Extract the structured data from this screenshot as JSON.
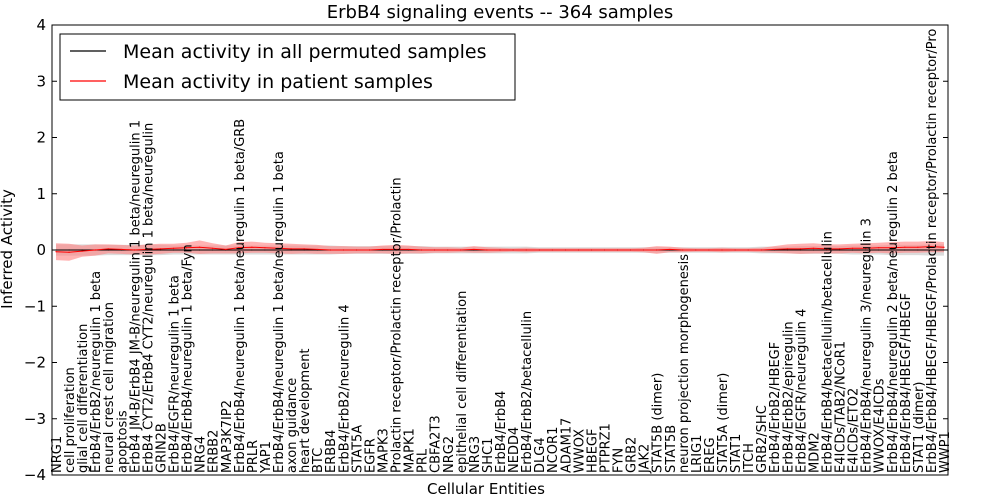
{
  "chart_data": {
    "type": "line",
    "title": "ErbB4 signaling events -- 364 samples",
    "xlabel": "Cellular Entities",
    "ylabel": "Inferred Activity",
    "ylim": [
      -4,
      4
    ],
    "yticks": [
      -4,
      -3,
      -2,
      -1,
      0,
      1,
      2,
      3,
      4
    ],
    "ytick_labels": [
      "−4",
      "−3",
      "−2",
      "−1",
      "0",
      "1",
      "2",
      "3",
      "4"
    ],
    "legend_position": "top-left",
    "categories": [
      "NRG1",
      "cell proliferation",
      "glial cell differentiation",
      "ErbB4/ErbB2/neuregulin 1 beta",
      "neural crest cell migration",
      "apoptosis",
      "ErbB4 JM-B/ErbB4 JM-B/neuregulin 1 beta/neuregulin 1",
      "ErbB4 CYT2/ErbB4 CYT2/neuregulin 1 beta/neuregulin",
      "GRIN2B",
      "ErbB4/EGFR/neuregulin 1 beta",
      "ErbB4/ErbB4/neuregulin 1 beta/Fyn",
      "NRG4",
      "ERBB2",
      "MAP3K7IP2",
      "ErbB4/ErbB4/neuregulin 1 beta/neuregulin 1 beta/GRB",
      "PRLR",
      "YAP1",
      "ErbB4/ErbB4/neuregulin 1 beta/neuregulin 1 beta",
      "axon guidance",
      "heart development",
      "BTC",
      "ERBB4",
      "ErbB4/ErbB2/neuregulin 4",
      "STAT5A",
      "EGFR",
      "MAPK3",
      "Prolactin receptor/Prolactin receptor/Prolactin",
      "MAPK1",
      "PRL",
      "CBFA2T3",
      "NRG2",
      "epithelial cell differentiation",
      "NRG3",
      "SHC1",
      "ErbB4/ErbB4",
      "NEDD4",
      "ErbB4/ErbB2/betacellulin",
      "DLG4",
      "NCOR1",
      "ADAM17",
      "WWOX",
      "HBEGF",
      "PTPRZ1",
      "FYN",
      "GRB2",
      "JAK2",
      "STAT5B (dimer)",
      "STAT5B",
      "neuron projection morphogenesis",
      "LRIG1",
      "EREG",
      "STAT5A (dimer)",
      "STAT1",
      "ITCH",
      "GRB2/SHC",
      "ErbB4/ErbB2/HBEGF",
      "ErbB4/ErbB2/epiregulin",
      "ErbB4/EGFR/neuregulin 4",
      "MDM2",
      "ErbB4/ErbB4/betacellulin/betacellulin",
      "E4ICDs/TAB2/NCoR1",
      "E4ICDs/ETO2",
      "ErbB4/ErbB4/neuregulin 3/neuregulin 3",
      "WWOX/E4ICDs",
      "ErbB4/ErbB4/neuregulin 2 beta/neuregulin 2 beta",
      "ErbB4/ErbB4/HBEGF/HBEGF",
      "STAT1 (dimer)",
      "ErbB4/ErbB4/HBEGF/HBEGF/Prolactin receptor/Prolactin receptor/Pro",
      "WWP1"
    ],
    "series": [
      {
        "name": "Mean activity in all permuted samples",
        "color": "#000000",
        "values": [
          0,
          0,
          0,
          0,
          0,
          0,
          0,
          0,
          0,
          0,
          0,
          0,
          0,
          0,
          0,
          0,
          0,
          0,
          0,
          0,
          0,
          0,
          0,
          0,
          0,
          0,
          0,
          0,
          0,
          0,
          0,
          0,
          0,
          0,
          0,
          0,
          0,
          0,
          0,
          0,
          0,
          0,
          0,
          0,
          0,
          0,
          0,
          0,
          0,
          0,
          0,
          0,
          0,
          0,
          0,
          0,
          0,
          0,
          0,
          0,
          0,
          0,
          0,
          0,
          0,
          0,
          0,
          0,
          0
        ],
        "band": [
          0.1,
          0.1,
          0.1,
          0.1,
          0.09,
          0.09,
          0.09,
          0.09,
          0.09,
          0.08,
          0.08,
          0.08,
          0.08,
          0.08,
          0.08,
          0.08,
          0.08,
          0.08,
          0.08,
          0.08,
          0.08,
          0.08,
          0.07,
          0.07,
          0.07,
          0.07,
          0.07,
          0.07,
          0.07,
          0.06,
          0.06,
          0.06,
          0.06,
          0.06,
          0.06,
          0.06,
          0.06,
          0.05,
          0.05,
          0.05,
          0.05,
          0.05,
          0.05,
          0.05,
          0.05,
          0.05,
          0.05,
          0.05,
          0.05,
          0.05,
          0.05,
          0.05,
          0.05,
          0.05,
          0.06,
          0.06,
          0.06,
          0.07,
          0.07,
          0.07,
          0.07,
          0.08,
          0.08,
          0.08,
          0.09,
          0.09,
          0.09,
          0.1,
          0.1
        ],
        "band_color": "#bdbdbd"
      },
      {
        "name": "Mean activity in patient samples",
        "color": "#ff0000",
        "values": [
          -0.03,
          -0.04,
          -0.02,
          0.0,
          0.02,
          0.01,
          0.0,
          0.01,
          0.02,
          0.03,
          0.04,
          0.05,
          0.03,
          0.01,
          0.04,
          0.05,
          0.04,
          0.03,
          0.02,
          0.02,
          0.01,
          0.0,
          0.0,
          0.0,
          0.0,
          0.01,
          0.01,
          0.01,
          0.0,
          0.0,
          0.0,
          0.0,
          0.01,
          0.0,
          0.0,
          0.0,
          0.0,
          0.0,
          0.0,
          0.0,
          0.0,
          0.0,
          0.0,
          0.0,
          0.0,
          0.0,
          0.0,
          0.01,
          0.0,
          0.0,
          0.0,
          0.0,
          0.0,
          0.0,
          0.0,
          0.01,
          0.02,
          0.02,
          0.03,
          0.02,
          0.02,
          0.03,
          0.03,
          0.04,
          0.04,
          0.05,
          0.05,
          0.06,
          0.05
        ],
        "band": [
          0.15,
          0.15,
          0.1,
          0.1,
          0.08,
          0.08,
          0.08,
          0.09,
          0.09,
          0.08,
          0.09,
          0.12,
          0.09,
          0.07,
          0.1,
          0.1,
          0.09,
          0.09,
          0.09,
          0.08,
          0.08,
          0.07,
          0.07,
          0.06,
          0.06,
          0.07,
          0.08,
          0.07,
          0.06,
          0.05,
          0.05,
          0.04,
          0.06,
          0.05,
          0.04,
          0.03,
          0.04,
          0.03,
          0.03,
          0.03,
          0.03,
          0.03,
          0.03,
          0.03,
          0.03,
          0.04,
          0.07,
          0.05,
          0.04,
          0.03,
          0.03,
          0.04,
          0.03,
          0.03,
          0.04,
          0.06,
          0.08,
          0.09,
          0.09,
          0.08,
          0.08,
          0.08,
          0.09,
          0.09,
          0.1,
          0.1,
          0.1,
          0.1,
          0.09
        ],
        "band_color": "#ff8080"
      }
    ]
  }
}
